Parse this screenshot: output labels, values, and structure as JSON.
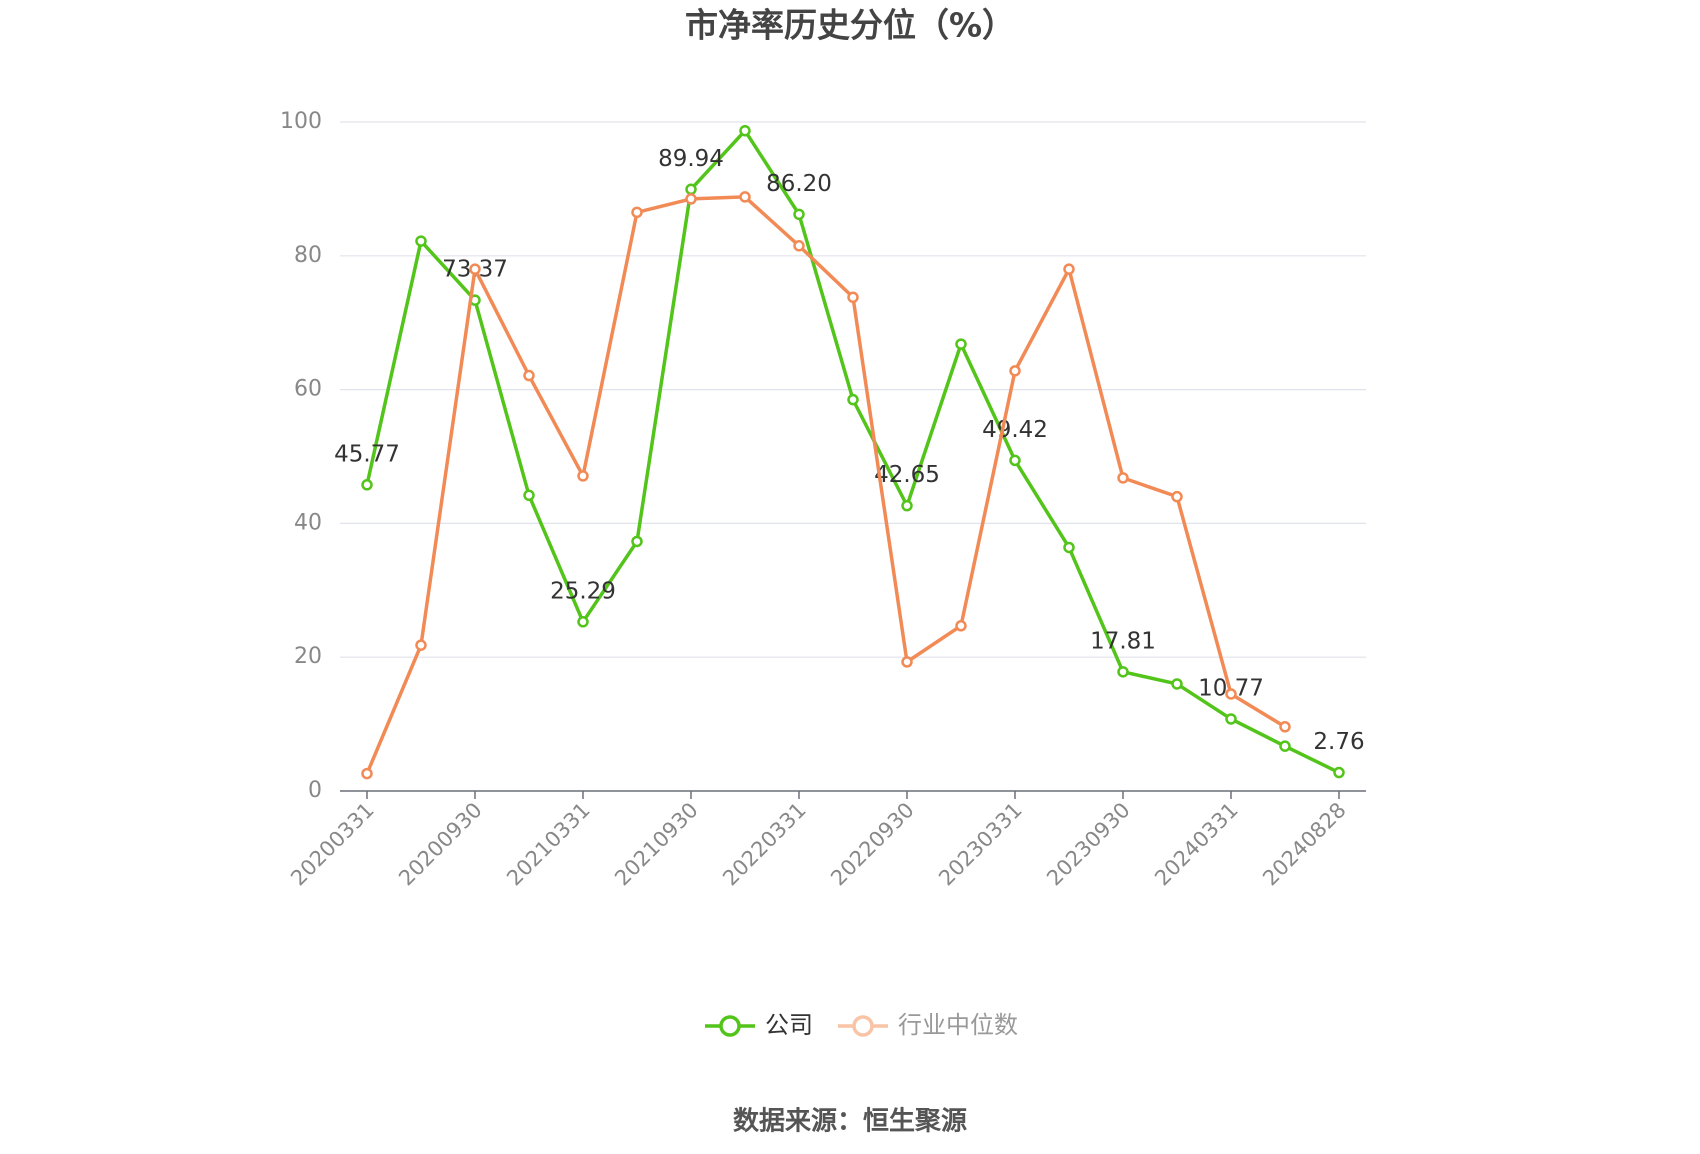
{
  "chart_data": {
    "type": "line",
    "title": "市净率历史分位（%）",
    "categories": [
      "20200331",
      null,
      "20200930",
      null,
      "20210331",
      null,
      "20210930",
      null,
      "20220331",
      null,
      "20220930",
      null,
      "20230331",
      null,
      "20230930",
      null,
      "20240331",
      null,
      "20240828"
    ],
    "series": [
      {
        "name": "公司",
        "color": "#52c41a",
        "values": [
          45.77,
          82.2,
          73.37,
          44.2,
          25.29,
          37.3,
          89.94,
          98.7,
          86.2,
          58.5,
          42.65,
          66.8,
          49.42,
          36.4,
          17.81,
          16.0,
          10.77,
          6.7,
          2.76
        ],
        "value_labels": [
          "45.77",
          null,
          "73.37",
          null,
          "25.29",
          null,
          "89.94",
          null,
          "86.20",
          null,
          "42.65",
          null,
          "49.42",
          null,
          "17.81",
          null,
          "10.77",
          null,
          "2.76"
        ]
      },
      {
        "name": "行业中位数",
        "color": "#f28a56",
        "values": [
          2.6,
          21.8,
          78.0,
          62.1,
          47.1,
          86.5,
          88.5,
          88.8,
          81.5,
          73.8,
          19.3,
          24.7,
          62.8,
          78.0,
          46.8,
          44.0,
          14.5,
          9.6,
          null
        ]
      }
    ],
    "ylim": [
      0,
      100
    ],
    "yticks": [
      0,
      20,
      40,
      60,
      80,
      100
    ],
    "grid": true,
    "legend": "bottom",
    "source": "数据来源：恒生聚源"
  }
}
